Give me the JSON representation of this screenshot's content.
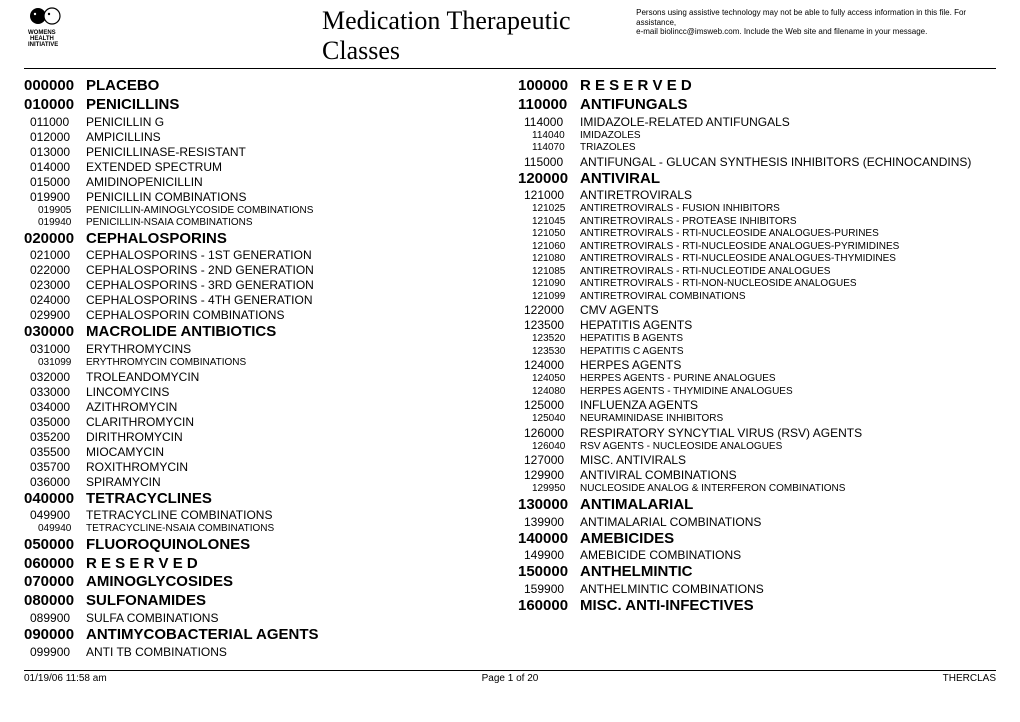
{
  "header": {
    "title": "Medication Therapeutic Classes",
    "assist_line1": "Persons using assistive technology may not be able to fully access information in this file. For assistance,",
    "assist_line2": "e-mail biolincc@imsweb.com. Include the Web site and filename in your message."
  },
  "footer": {
    "date": "01/19/06 11:58 am",
    "page": "Page 1 of 20",
    "doc": "THERCLAS"
  },
  "left": [
    {
      "lvl": 0,
      "code": "000000",
      "name": "PLACEBO"
    },
    {
      "lvl": 0,
      "code": "010000",
      "name": "PENICILLINS"
    },
    {
      "lvl": 1,
      "code": "011000",
      "name": "PENICILLIN G"
    },
    {
      "lvl": 1,
      "code": "012000",
      "name": "AMPICILLINS"
    },
    {
      "lvl": 1,
      "code": "013000",
      "name": "PENICILLINASE-RESISTANT"
    },
    {
      "lvl": 1,
      "code": "014000",
      "name": "EXTENDED SPECTRUM"
    },
    {
      "lvl": 1,
      "code": "015000",
      "name": "AMIDINOPENICILLIN"
    },
    {
      "lvl": 1,
      "code": "019900",
      "name": "PENICILLIN COMBINATIONS"
    },
    {
      "lvl": 2,
      "code": "019905",
      "name": "PENICILLIN-AMINOGLYCOSIDE COMBINATIONS"
    },
    {
      "lvl": 2,
      "code": "019940",
      "name": "PENICILLIN-NSAIA COMBINATIONS"
    },
    {
      "lvl": 0,
      "code": "020000",
      "name": "CEPHALOSPORINS"
    },
    {
      "lvl": 1,
      "code": "021000",
      "name": "CEPHALOSPORINS - 1ST GENERATION"
    },
    {
      "lvl": 1,
      "code": "022000",
      "name": "CEPHALOSPORINS - 2ND GENERATION"
    },
    {
      "lvl": 1,
      "code": "023000",
      "name": "CEPHALOSPORINS - 3RD GENERATION"
    },
    {
      "lvl": 1,
      "code": "024000",
      "name": "CEPHALOSPORINS - 4TH GENERATION"
    },
    {
      "lvl": 1,
      "code": "029900",
      "name": "CEPHALOSPORIN COMBINATIONS"
    },
    {
      "lvl": 0,
      "code": "030000",
      "name": "MACROLIDE ANTIBIOTICS"
    },
    {
      "lvl": 1,
      "code": "031000",
      "name": "ERYTHROMYCINS"
    },
    {
      "lvl": 2,
      "code": "031099",
      "name": "ERYTHROMYCIN COMBINATIONS"
    },
    {
      "lvl": 1,
      "code": "032000",
      "name": "TROLEANDOMYCIN"
    },
    {
      "lvl": 1,
      "code": "033000",
      "name": "LINCOMYCINS"
    },
    {
      "lvl": 1,
      "code": "034000",
      "name": "AZITHROMYCIN"
    },
    {
      "lvl": 1,
      "code": "035000",
      "name": "CLARITHROMYCIN"
    },
    {
      "lvl": 1,
      "code": "035200",
      "name": "DIRITHROMYCIN"
    },
    {
      "lvl": 1,
      "code": "035500",
      "name": "MIOCAMYCIN"
    },
    {
      "lvl": 1,
      "code": "035700",
      "name": "ROXITHROMYCIN"
    },
    {
      "lvl": 1,
      "code": "036000",
      "name": "SPIRAMYCIN"
    },
    {
      "lvl": 0,
      "code": "040000",
      "name": "TETRACYCLINES"
    },
    {
      "lvl": 1,
      "code": "049900",
      "name": "TETRACYCLINE COMBINATIONS"
    },
    {
      "lvl": 2,
      "code": "049940",
      "name": "TETRACYCLINE-NSAIA COMBINATIONS"
    },
    {
      "lvl": 0,
      "code": "050000",
      "name": "FLUOROQUINOLONES"
    },
    {
      "lvl": 0,
      "code": "060000",
      "name": "R E S E R V E D"
    },
    {
      "lvl": 0,
      "code": "070000",
      "name": "AMINOGLYCOSIDES"
    },
    {
      "lvl": 0,
      "code": "080000",
      "name": "SULFONAMIDES"
    },
    {
      "lvl": 1,
      "code": "089900",
      "name": "SULFA COMBINATIONS"
    },
    {
      "lvl": 0,
      "code": "090000",
      "name": "ANTIMYCOBACTERIAL AGENTS"
    },
    {
      "lvl": 1,
      "code": "099900",
      "name": "ANTI TB COMBINATIONS"
    }
  ],
  "right": [
    {
      "lvl": 0,
      "code": "100000",
      "name": "R E S E R V E D"
    },
    {
      "lvl": 0,
      "code": "110000",
      "name": "ANTIFUNGALS"
    },
    {
      "lvl": 1,
      "code": "114000",
      "name": "IMIDAZOLE-RELATED ANTIFUNGALS"
    },
    {
      "lvl": 2,
      "code": "114040",
      "name": "IMIDAZOLES"
    },
    {
      "lvl": 2,
      "code": "114070",
      "name": "TRIAZOLES"
    },
    {
      "lvl": 1,
      "code": "115000",
      "name": "ANTIFUNGAL - GLUCAN SYNTHESIS INHIBITORS (ECHINOCANDINS)"
    },
    {
      "lvl": 0,
      "code": "120000",
      "name": "ANTIVIRAL"
    },
    {
      "lvl": 1,
      "code": "121000",
      "name": "ANTIRETROVIRALS"
    },
    {
      "lvl": 2,
      "code": "121025",
      "name": "ANTIRETROVIRALS - FUSION INHIBITORS"
    },
    {
      "lvl": 2,
      "code": "121045",
      "name": "ANTIRETROVIRALS - PROTEASE INHIBITORS"
    },
    {
      "lvl": 2,
      "code": "121050",
      "name": "ANTIRETROVIRALS - RTI-NUCLEOSIDE ANALOGUES-PURINES"
    },
    {
      "lvl": 2,
      "code": "121060",
      "name": "ANTIRETROVIRALS - RTI-NUCLEOSIDE ANALOGUES-PYRIMIDINES"
    },
    {
      "lvl": 2,
      "code": "121080",
      "name": "ANTIRETROVIRALS - RTI-NUCLEOSIDE ANALOGUES-THYMIDINES"
    },
    {
      "lvl": 2,
      "code": "121085",
      "name": "ANTIRETROVIRALS - RTI-NUCLEOTIDE ANALOGUES"
    },
    {
      "lvl": 2,
      "code": "121090",
      "name": "ANTIRETROVIRALS - RTI-NON-NUCLEOSIDE ANALOGUES"
    },
    {
      "lvl": 2,
      "code": "121099",
      "name": "ANTIRETROVIRAL COMBINATIONS"
    },
    {
      "lvl": 1,
      "code": "122000",
      "name": "CMV AGENTS"
    },
    {
      "lvl": 1,
      "code": "123500",
      "name": "HEPATITIS AGENTS"
    },
    {
      "lvl": 2,
      "code": "123520",
      "name": "HEPATITIS B AGENTS"
    },
    {
      "lvl": 2,
      "code": "123530",
      "name": "HEPATITIS C AGENTS"
    },
    {
      "lvl": 1,
      "code": "124000",
      "name": "HERPES AGENTS"
    },
    {
      "lvl": 2,
      "code": "124050",
      "name": "HERPES AGENTS - PURINE ANALOGUES"
    },
    {
      "lvl": 2,
      "code": "124080",
      "name": "HERPES AGENTS - THYMIDINE ANALOGUES"
    },
    {
      "lvl": 1,
      "code": "125000",
      "name": "INFLUENZA AGENTS"
    },
    {
      "lvl": 2,
      "code": "125040",
      "name": "NEURAMINIDASE INHIBITORS"
    },
    {
      "lvl": 1,
      "code": "126000",
      "name": "RESPIRATORY SYNCYTIAL VIRUS (RSV) AGENTS"
    },
    {
      "lvl": 2,
      "code": "126040",
      "name": "RSV AGENTS - NUCLEOSIDE ANALOGUES"
    },
    {
      "lvl": 1,
      "code": "127000",
      "name": "MISC. ANTIVIRALS"
    },
    {
      "lvl": 1,
      "code": "129900",
      "name": "ANTIVIRAL COMBINATIONS"
    },
    {
      "lvl": 2,
      "code": "129950",
      "name": "NUCLEOSIDE ANALOG & INTERFERON COMBINATIONS"
    },
    {
      "lvl": 0,
      "code": "130000",
      "name": "ANTIMALARIAL"
    },
    {
      "lvl": 1,
      "code": "139900",
      "name": "ANTIMALARIAL COMBINATIONS"
    },
    {
      "lvl": 0,
      "code": "140000",
      "name": "AMEBICIDES"
    },
    {
      "lvl": 1,
      "code": "149900",
      "name": "AMEBICIDE COMBINATIONS"
    },
    {
      "lvl": 0,
      "code": "150000",
      "name": "ANTHELMINTIC"
    },
    {
      "lvl": 1,
      "code": "159900",
      "name": "ANTHELMINTIC COMBINATIONS"
    },
    {
      "lvl": 0,
      "code": "160000",
      "name": "MISC. ANTI-INFECTIVES"
    }
  ]
}
